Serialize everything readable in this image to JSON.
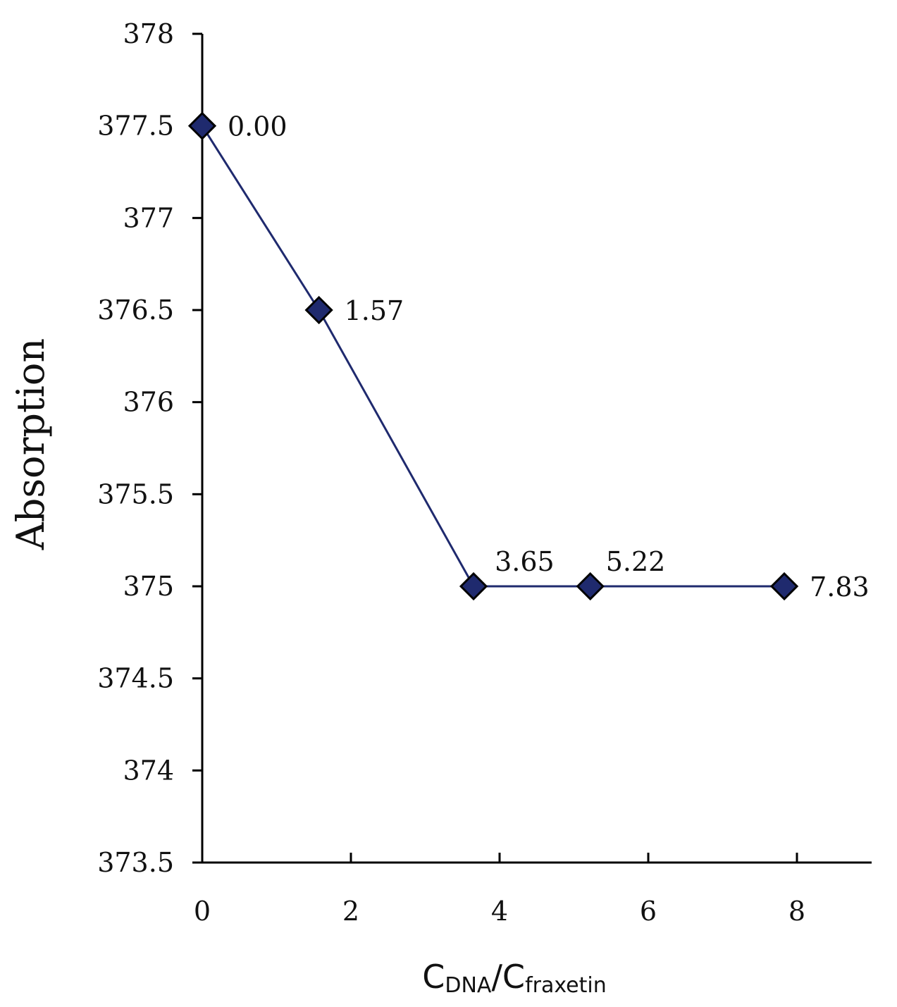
{
  "chart_data": {
    "type": "line",
    "title": "",
    "ylabel": "Absorption",
    "xlabel": {
      "main1": "C",
      "sub1": "DNA",
      "sep": "/C",
      "sub2": "fraxetin"
    },
    "xlim": [
      0,
      9
    ],
    "ylim": [
      373.5,
      378
    ],
    "x_ticks": [
      0,
      2,
      4,
      6,
      8
    ],
    "x_tick_labels": [
      "0",
      "2",
      "4",
      "6",
      "8"
    ],
    "y_ticks": [
      373.5,
      374,
      374.5,
      375,
      375.5,
      376,
      376.5,
      377,
      377.5,
      378
    ],
    "y_tick_labels": [
      "373.5",
      "374",
      "374.5",
      "375",
      "375.5",
      "376",
      "376.5",
      "377",
      "377.5",
      "378"
    ],
    "grid": false,
    "legend": "none",
    "series": [
      {
        "color": "#1f2a6e",
        "marker": "diamond",
        "x": [
          0,
          1.57,
          3.65,
          5.22,
          7.83
        ],
        "y": [
          377.5,
          376.5,
          375,
          375,
          375
        ],
        "labels": [
          "0.00",
          "1.57",
          "3.65",
          "5.22",
          "7.83"
        ]
      }
    ]
  }
}
